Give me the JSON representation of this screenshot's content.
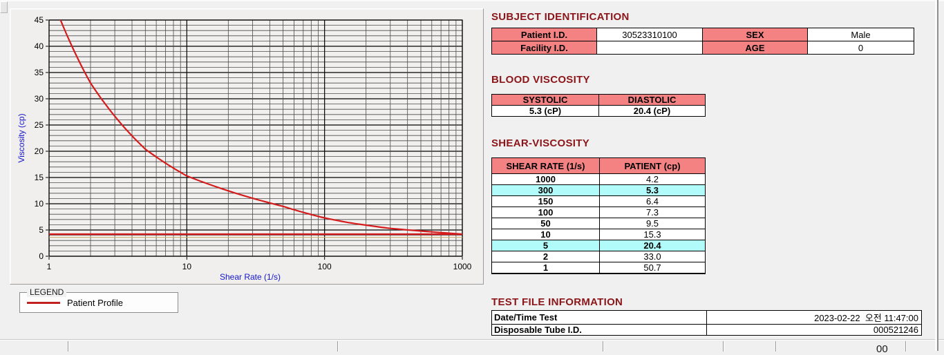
{
  "colors": {
    "header_pink": "#f48282",
    "highlight_cyan": "#b2fbfb",
    "title_maroon": "#8b1518",
    "curve_red": "#d51c1c",
    "reference_tan": "#c9a96a",
    "axis_label_blue": "#1414cc",
    "background_gray": "#f0f0f0"
  },
  "chart_data": {
    "type": "line",
    "x_scale": "log",
    "xlabel": "Shear Rate (1/s)",
    "ylabel": "Viscosity (cp)",
    "xlim": [
      1,
      1000
    ],
    "ylim": [
      0,
      45
    ],
    "x_ticks": [
      1,
      10,
      100,
      1000
    ],
    "y_ticks": [
      0,
      5,
      10,
      15,
      20,
      25,
      30,
      35,
      40,
      45
    ],
    "grid": {
      "minor_y_step": 1,
      "major_y_step": 5,
      "x_minor": "log-decades"
    },
    "legend_position": "below-left",
    "series": [
      {
        "name": "Patient Profile",
        "color": "#d51c1c",
        "x": [
          1,
          2,
          5,
          10,
          50,
          100,
          150,
          300,
          1000
        ],
        "y": [
          50.7,
          33.0,
          20.4,
          15.3,
          9.5,
          7.3,
          6.4,
          5.3,
          4.2
        ]
      }
    ],
    "reference_lines": [
      {
        "y": 4.2,
        "color": "#d51c1c",
        "width": 2.4
      },
      {
        "y": 3.6,
        "color": "#c9a96a",
        "width": 1
      }
    ]
  },
  "legend": {
    "title": "LEGEND",
    "series_label": "Patient Profile"
  },
  "subject": {
    "title": "SUBJECT IDENTIFICATION",
    "rows": [
      {
        "label1": "Patient I.D.",
        "value1": "30523310100",
        "label2": "SEX",
        "value2": "Male"
      },
      {
        "label1": "Facility I.D.",
        "value1": "",
        "label2": "AGE",
        "value2": "0"
      }
    ]
  },
  "blood": {
    "title": "BLOOD VISCOSITY",
    "headers": [
      "SYSTOLIC",
      "DIASTOLIC"
    ],
    "values": [
      "5.3 (cP)",
      "20.4 (cP)"
    ]
  },
  "shear": {
    "title": "SHEAR-VISCOSITY",
    "headers": [
      "SHEAR RATE (1/s)",
      "PATIENT (cp)"
    ],
    "rows": [
      {
        "rate": "1000",
        "value": "4.2",
        "highlight": false
      },
      {
        "rate": "300",
        "value": "5.3",
        "highlight": true
      },
      {
        "rate": "150",
        "value": "6.4",
        "highlight": false
      },
      {
        "rate": "100",
        "value": "7.3",
        "highlight": false
      },
      {
        "rate": "50",
        "value": "9.5",
        "highlight": false
      },
      {
        "rate": "10",
        "value": "15.3",
        "highlight": false
      },
      {
        "rate": "5",
        "value": "20.4",
        "highlight": true
      },
      {
        "rate": "2",
        "value": "33.0",
        "highlight": false
      },
      {
        "rate": "1",
        "value": "50.7",
        "highlight": false
      }
    ]
  },
  "test_file": {
    "title": "TEST FILE INFORMATION",
    "rows": [
      {
        "label": "Date/Time Test",
        "value": "2023-02-22  오전 11:47:00"
      },
      {
        "label": "Disposable Tube I.D.",
        "value": "000521246"
      }
    ]
  },
  "status_bar": {
    "partial_text": "00"
  }
}
